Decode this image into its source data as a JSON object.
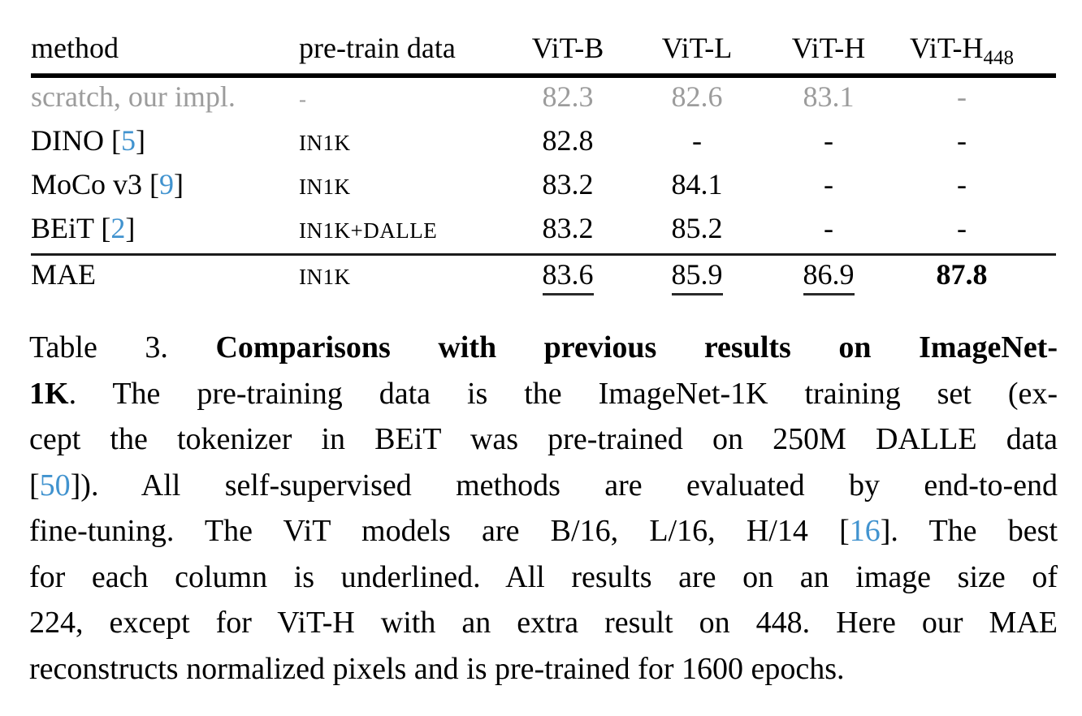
{
  "colors": {
    "background": "#ffffff",
    "text": "#000000",
    "muted_row": "#9c9c9c",
    "citation": "#4193cf",
    "rule": "#000000"
  },
  "table": {
    "columns": [
      {
        "key": "method",
        "label": "method",
        "align": "left"
      },
      {
        "key": "pretrain",
        "label": "pre-train data",
        "align": "left"
      },
      {
        "key": "vitb",
        "label": "ViT-B",
        "align": "center"
      },
      {
        "key": "vitl",
        "label": "ViT-L",
        "align": "center"
      },
      {
        "key": "vith",
        "label": "ViT-H",
        "align": "center"
      },
      {
        "key": "vith448",
        "label": "ViT-H",
        "sub": "448",
        "align": "center"
      }
    ],
    "rows": [
      {
        "name": "scratch-our-impl",
        "muted": true,
        "cells": [
          [
            {
              "t": "scratch, our impl."
            }
          ],
          [
            {
              "t": "-"
            }
          ],
          [
            {
              "t": "82.3"
            }
          ],
          [
            {
              "t": "82.6"
            }
          ],
          [
            {
              "t": "83.1"
            }
          ],
          [
            {
              "t": "-"
            }
          ]
        ]
      },
      {
        "name": "dino",
        "cells": [
          [
            {
              "t": "DINO ["
            },
            {
              "t": "5",
              "c": true
            },
            {
              "t": "]"
            }
          ],
          [
            {
              "t": "IN1K"
            }
          ],
          [
            {
              "t": "82.8"
            }
          ],
          [
            {
              "t": "-"
            }
          ],
          [
            {
              "t": "-"
            }
          ],
          [
            {
              "t": "-"
            }
          ]
        ]
      },
      {
        "name": "moco-v3",
        "cells": [
          [
            {
              "t": "MoCo v3 ["
            },
            {
              "t": "9",
              "c": true
            },
            {
              "t": "]"
            }
          ],
          [
            {
              "t": "IN1K"
            }
          ],
          [
            {
              "t": "83.2"
            }
          ],
          [
            {
              "t": "84.1"
            }
          ],
          [
            {
              "t": "-"
            }
          ],
          [
            {
              "t": "-"
            }
          ]
        ]
      },
      {
        "name": "beit",
        "cells": [
          [
            {
              "t": "BEiT ["
            },
            {
              "t": "2",
              "c": true
            },
            {
              "t": "]"
            }
          ],
          [
            {
              "t": "IN1K+DALLE"
            }
          ],
          [
            {
              "t": "83.2"
            }
          ],
          [
            {
              "t": "85.2"
            }
          ],
          [
            {
              "t": "-"
            }
          ],
          [
            {
              "t": "-"
            }
          ]
        ]
      },
      {
        "name": "mae",
        "rule_above": true,
        "cells": [
          [
            {
              "t": "MAE"
            }
          ],
          [
            {
              "t": "IN1K"
            }
          ],
          [
            {
              "t": "83.6",
              "u": true
            }
          ],
          [
            {
              "t": "85.9",
              "u": true
            }
          ],
          [
            {
              "t": "86.9",
              "u": true
            }
          ],
          [
            {
              "t": "87.8",
              "b": true
            }
          ]
        ]
      }
    ]
  },
  "caption": {
    "label": "Table 3.",
    "lines": [
      [
        {
          "t": "Table 3.  "
        },
        {
          "t": "Comparisons with previous results on ImageNet-",
          "b": true
        }
      ],
      [
        {
          "t": "1K",
          "b": true
        },
        {
          "t": ". The pre-training data is the ImageNet-1K training set (ex-"
        }
      ],
      [
        {
          "t": "cept the tokenizer in BEiT was pre-trained on 250M DALLE data"
        }
      ],
      [
        {
          "t": "["
        },
        {
          "t": "50",
          "c": true
        },
        {
          "t": "]).  All self-supervised methods are evaluated by end-to-end"
        }
      ],
      [
        {
          "t": "fine-tuning. The ViT models are B/16, L/16, H/14 ["
        },
        {
          "t": "16",
          "c": true
        },
        {
          "t": "]. The best"
        }
      ],
      [
        {
          "t": "for each column is underlined. All results are on an image size of"
        }
      ],
      [
        {
          "t": "224, except for ViT-H with an extra result on 448. Here our MAE"
        }
      ],
      [
        {
          "t": "reconstructs normalized pixels and is pre-trained for 1600 epochs."
        }
      ]
    ]
  }
}
